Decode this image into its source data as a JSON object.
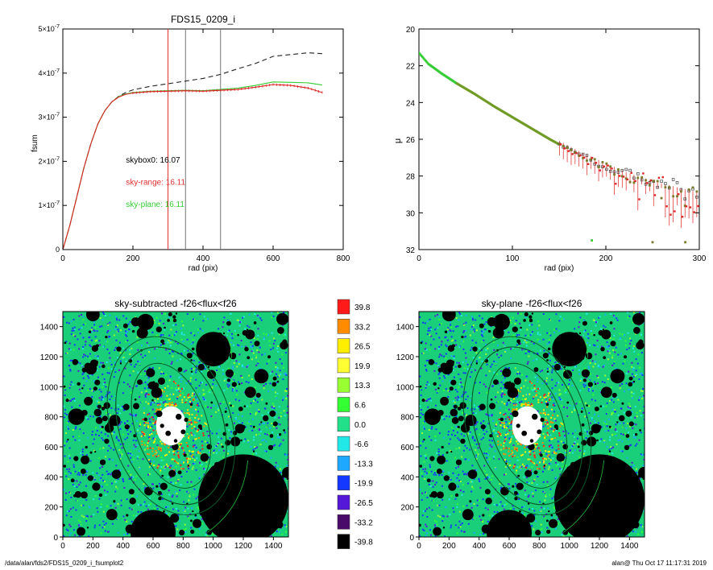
{
  "footer": {
    "path": "/data/alan/fds2/FDS15_0209_i_fsumplot2",
    "stamp": "alan@  Thu Oct 17 11:17:31 2019"
  },
  "chart_data": [
    {
      "id": "curve-of-growth",
      "type": "line",
      "title": "FDS15_0209_i",
      "xlabel": "rad (pix)",
      "ylabel": "fsum",
      "xlim": [
        0,
        800
      ],
      "ylim": [
        0,
        5e-07
      ],
      "xticks": [
        "0",
        "200",
        "400",
        "600",
        "800"
      ],
      "yticks": [
        {
          "v": 0,
          "base": "0",
          "exp": ""
        },
        {
          "v": 1e-07,
          "base": "1×10",
          "exp": "-7"
        },
        {
          "v": 2e-07,
          "base": "2×10",
          "exp": "-7"
        },
        {
          "v": 3e-07,
          "base": "3×10",
          "exp": "-7"
        },
        {
          "v": 4e-07,
          "base": "4×10",
          "exp": "-7"
        },
        {
          "v": 5e-07,
          "base": "5×10",
          "exp": "-7"
        }
      ],
      "vlines": [
        {
          "x": 300,
          "color": "#e03030"
        },
        {
          "x": 350,
          "color": "#777777"
        },
        {
          "x": 450,
          "color": "#777777"
        }
      ],
      "annotations": [
        {
          "text": "skybox0: 16.07",
          "x": 180,
          "y": 1.97e-07,
          "color": "#000000"
        },
        {
          "text": "sky-range: 16.11",
          "x": 180,
          "y": 1.47e-07,
          "color": "#e03030"
        },
        {
          "text": "sky-plane: 16.11",
          "x": 180,
          "y": 9.7e-08,
          "color": "#33cc33"
        }
      ],
      "series": [
        {
          "color": "#222222",
          "dash": "6,4",
          "x": [
            0,
            20,
            40,
            60,
            80,
            100,
            120,
            140,
            160,
            180,
            200,
            250,
            300,
            350,
            400,
            450,
            500,
            550,
            600,
            650,
            700,
            740
          ],
          "y": [
            0,
            5.5e-08,
            1.2e-07,
            1.85e-07,
            2.4e-07,
            2.85e-07,
            3.15e-07,
            3.35e-07,
            3.48e-07,
            3.56e-07,
            3.62e-07,
            3.7e-07,
            3.76e-07,
            3.82e-07,
            3.88e-07,
            3.97e-07,
            4.1e-07,
            4.22e-07,
            4.38e-07,
            4.42e-07,
            4.46e-07,
            4.44e-07
          ]
        },
        {
          "color": "#33cc33",
          "dash": "",
          "x": [
            0,
            20,
            40,
            60,
            80,
            100,
            120,
            140,
            160,
            180,
            200,
            250,
            300,
            350,
            400,
            450,
            500,
            550,
            600,
            650,
            700,
            740
          ],
          "y": [
            0,
            5.5e-08,
            1.2e-07,
            1.85e-07,
            2.4e-07,
            2.85e-07,
            3.15e-07,
            3.35e-07,
            3.47e-07,
            3.53e-07,
            3.56e-07,
            3.59e-07,
            3.6e-07,
            3.61e-07,
            3.6e-07,
            3.63e-07,
            3.66e-07,
            3.72e-07,
            3.8e-07,
            3.79e-07,
            3.78e-07,
            3.73e-07
          ]
        },
        {
          "color": "#dd2222",
          "dash": "",
          "x": [
            0,
            20,
            40,
            60,
            80,
            100,
            120,
            140,
            160,
            180,
            200,
            250,
            300,
            350,
            400,
            450,
            500,
            550,
            600,
            650,
            700,
            740
          ],
          "y": [
            0,
            5.5e-08,
            1.2e-07,
            1.85e-07,
            2.4e-07,
            2.85e-07,
            3.15e-07,
            3.35e-07,
            3.46e-07,
            3.52e-07,
            3.55e-07,
            3.58e-07,
            3.59e-07,
            3.6e-07,
            3.59e-07,
            3.61e-07,
            3.63e-07,
            3.68e-07,
            3.74e-07,
            3.72e-07,
            3.66e-07,
            3.56e-07
          ]
        }
      ]
    },
    {
      "id": "surface-brightness",
      "type": "scatter",
      "title": "",
      "xlabel": "rad (pix)",
      "ylabel": "μ",
      "xlim": [
        0,
        300
      ],
      "ylim": [
        32,
        20
      ],
      "xticks": [
        "0",
        "100",
        "200",
        "300"
      ],
      "yticks": [
        "20",
        "22",
        "24",
        "26",
        "28",
        "30",
        "32"
      ],
      "profile": [
        [
          0,
          21.3
        ],
        [
          10,
          21.9
        ],
        [
          25,
          22.45
        ],
        [
          40,
          22.95
        ],
        [
          60,
          23.55
        ],
        [
          80,
          24.2
        ],
        [
          100,
          24.8
        ],
        [
          120,
          25.4
        ],
        [
          140,
          26.0
        ],
        [
          160,
          26.55
        ],
        [
          180,
          27.05
        ],
        [
          200,
          27.5
        ],
        [
          220,
          27.95
        ],
        [
          240,
          28.3
        ],
        [
          260,
          28.6
        ],
        [
          280,
          28.85
        ],
        [
          300,
          29.1
        ]
      ],
      "scatter_from_x": 150,
      "outliers": [
        [
          185,
          31.5
        ],
        [
          250,
          31.6
        ],
        [
          285,
          31.6
        ]
      ],
      "colors": {
        "sky_plane": "#33cc33",
        "sky_range": "#dd2222",
        "skybox": "#444444",
        "mid": "#7a7a2a"
      }
    },
    {
      "id": "map-sky-subtracted",
      "type": "heatmap",
      "title": "sky-subtracted -f26<flux<f26",
      "xlim": [
        0,
        1500
      ],
      "ylim": [
        0,
        1500
      ],
      "xticks": [
        "0",
        "200",
        "400",
        "600",
        "800",
        "1000",
        "1200",
        "1400"
      ],
      "yticks": [
        "0",
        "200",
        "400",
        "600",
        "800",
        "1000",
        "1200",
        "1400"
      ],
      "seed": 7
    },
    {
      "id": "map-sky-plane",
      "type": "heatmap",
      "title": "sky-plane -f26<flux<f26",
      "xlim": [
        0,
        1500
      ],
      "ylim": [
        0,
        1500
      ],
      "xticks": [
        "0",
        "200",
        "400",
        "600",
        "800",
        "1000",
        "1200",
        "1400"
      ],
      "yticks": [
        "0",
        "200",
        "400",
        "600",
        "800",
        "1000",
        "1200",
        "1400"
      ],
      "seed": 7
    },
    {
      "id": "colorbar",
      "type": "table",
      "labels": [
        "39.8",
        "33.2",
        "26.5",
        "19.9",
        "13.3",
        "6.6",
        "0.0",
        "-6.6",
        "-13.3",
        "-19.9",
        "-26.5",
        "-33.2",
        "-39.8"
      ],
      "colors": [
        "#ff1a1a",
        "#ff8c00",
        "#ffee00",
        "#ffff33",
        "#99ff33",
        "#33ff33",
        "#22e08a",
        "#22e8e8",
        "#1ea8ff",
        "#1438ff",
        "#5518d8",
        "#4a0a6a",
        "#000000"
      ]
    }
  ]
}
